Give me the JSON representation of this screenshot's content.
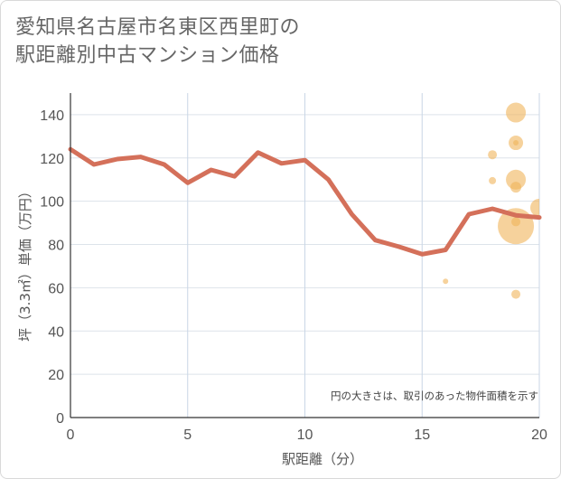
{
  "chart_data": {
    "type": "line+scatter",
    "title_line1": "愛知県名古屋市名東区西里町の",
    "title_line2": "駅距離別中古マンション価格",
    "xlabel": "駅距離（分）",
    "ylabel": "坪（3.3㎡）単価（万円）",
    "xlim": [
      0,
      20
    ],
    "ylim": [
      0,
      150
    ],
    "xticks": [
      "0",
      "5",
      "10",
      "15",
      "20"
    ],
    "yticks": [
      "0",
      "20",
      "40",
      "60",
      "80",
      "100",
      "120",
      "140"
    ],
    "note": "円の大きさは、取引のあった物件面積を示す",
    "line_color": "#d4705a",
    "bubble_color": "#f0b45a",
    "line": {
      "x": [
        0,
        1,
        2,
        3,
        4,
        5,
        6,
        7,
        8,
        9,
        10,
        11,
        12,
        13,
        14,
        15,
        16,
        17,
        18,
        19,
        20
      ],
      "y": [
        124,
        117,
        119.5,
        120.5,
        117,
        108.5,
        114.5,
        111.5,
        122.5,
        117.5,
        119,
        110,
        94,
        82,
        79,
        75.5,
        77.5,
        94,
        96.5,
        93.5,
        92.5
      ]
    },
    "bubbles": [
      {
        "x": 16,
        "y": 63,
        "size": 3
      },
      {
        "x": 18,
        "y": 109.5,
        "size": 4
      },
      {
        "x": 18,
        "y": 121.5,
        "size": 5
      },
      {
        "x": 19,
        "y": 141,
        "size": 11
      },
      {
        "x": 19,
        "y": 127,
        "size": 8
      },
      {
        "x": 19,
        "y": 127,
        "size": 3
      },
      {
        "x": 19,
        "y": 110,
        "size": 11
      },
      {
        "x": 19,
        "y": 106.5,
        "size": 6
      },
      {
        "x": 19,
        "y": 90.5,
        "size": 5
      },
      {
        "x": 19,
        "y": 88.5,
        "size": 20
      },
      {
        "x": 19,
        "y": 57,
        "size": 5
      },
      {
        "x": 20,
        "y": 97,
        "size": 10
      }
    ]
  }
}
